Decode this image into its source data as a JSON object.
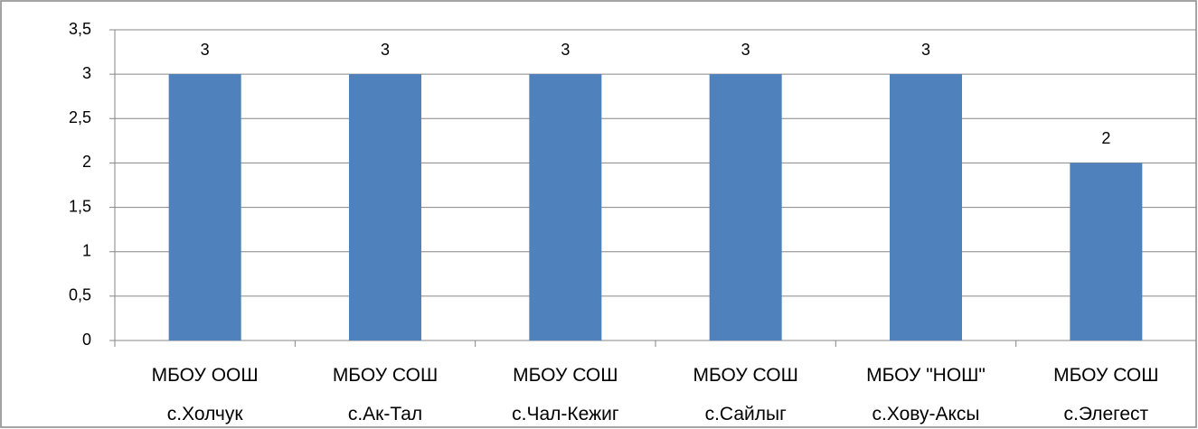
{
  "chart_data": {
    "type": "bar",
    "categories": [
      "МБОУ ООШ\nс.Холчук",
      "МБОУ СОШ\nс.Ак-Тал",
      "МБОУ СОШ\nс.Чал-Кежиг",
      "МБОУ СОШ\nс.Сайлыг",
      "МБОУ \"НОШ\"\nс.Хову-Аксы",
      "МБОУ СОШ\nс.Элегест"
    ],
    "values": [
      3,
      3,
      3,
      3,
      3,
      2
    ],
    "color": "#4f81bd",
    "ylim": [
      0,
      3.5
    ],
    "yticks": [
      0,
      {
        "value": 0.5,
        "label": "0,5"
      },
      1,
      {
        "value": 1.5,
        "label": "1,5"
      },
      2,
      {
        "value": 2.5,
        "label": "2,5"
      },
      3,
      {
        "value": 3.5,
        "label": "3,5"
      }
    ],
    "grid": true
  }
}
